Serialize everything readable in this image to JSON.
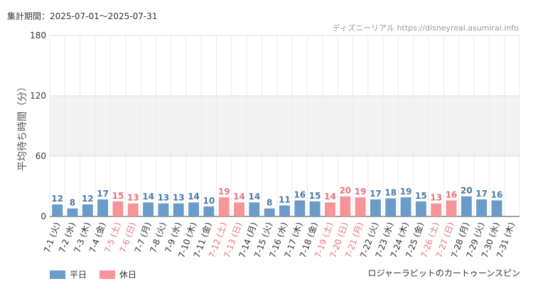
{
  "header": {
    "period": "集計期間：2025-07-01～2025-07-31",
    "credit": "ディズニーリアル https://disneyreal.asumirai.info"
  },
  "chart_data": {
    "type": "bar",
    "title": "ロジャーラビットのカートゥーンスピン",
    "ylabel": "平均待ち時間（分）",
    "ylim": [
      0,
      180
    ],
    "yticks": [
      0,
      60,
      120,
      180
    ],
    "grid": true,
    "categories": [
      "7-1 (火)",
      "7-2 (水)",
      "7-3 (木)",
      "7-4 (金)",
      "7-5 (土)",
      "7-6 (日)",
      "7-7 (月)",
      "7-8 (火)",
      "7-9 (水)",
      "7-10 (木)",
      "7-11 (金)",
      "7-12 (土)",
      "7-13 (日)",
      "7-14 (月)",
      "7-15 (火)",
      "7-16 (水)",
      "7-17 (木)",
      "7-18 (金)",
      "7-19 (土)",
      "7-20 (日)",
      "7-21 (月)",
      "7-22 (火)",
      "7-23 (水)",
      "7-24 (木)",
      "7-25 (金)",
      "7-26 (土)",
      "7-27 (日)",
      "7-28 (月)",
      "7-29 (火)",
      "7-30 (水)",
      "7-31 (木)"
    ],
    "values": [
      12,
      8,
      12,
      17,
      15,
      13,
      14,
      13,
      13,
      14,
      10,
      19,
      14,
      14,
      8,
      11,
      16,
      15,
      14,
      20,
      19,
      17,
      18,
      19,
      15,
      13,
      16,
      20,
      17,
      16,
      null
    ],
    "holiday": [
      false,
      false,
      false,
      false,
      true,
      true,
      false,
      false,
      false,
      false,
      false,
      true,
      true,
      false,
      false,
      false,
      false,
      false,
      true,
      true,
      true,
      false,
      false,
      false,
      false,
      true,
      true,
      false,
      false,
      false,
      false
    ],
    "legend": [
      {
        "name": "平日",
        "color": "#6b9bc8"
      },
      {
        "name": "休日",
        "color": "#f79499"
      }
    ],
    "legend_position": "bottom-left",
    "colors": {
      "weekday_bar": "#6b9bc8",
      "holiday_bar": "#f79499",
      "weekday_label": "#4a78a8",
      "holiday_label": "#e9737a",
      "band": "#f2f2f2"
    }
  }
}
